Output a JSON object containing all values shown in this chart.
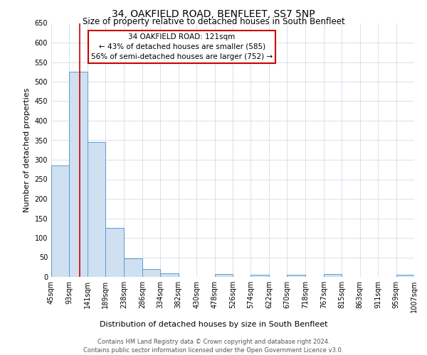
{
  "title": "34, OAKFIELD ROAD, BENFLEET, SS7 5NP",
  "subtitle": "Size of property relative to detached houses in South Benfleet",
  "xlabel": "Distribution of detached houses by size in South Benfleet",
  "ylabel": "Number of detached properties",
  "footer_line1": "Contains HM Land Registry data © Crown copyright and database right 2024.",
  "footer_line2": "Contains public sector information licensed under the Open Government Licence v3.0.",
  "bins": [
    45,
    93,
    141,
    189,
    238,
    286,
    334,
    382,
    430,
    478,
    526,
    574,
    622,
    670,
    718,
    767,
    815,
    863,
    911,
    959,
    1007
  ],
  "bin_labels": [
    "45sqm",
    "93sqm",
    "141sqm",
    "189sqm",
    "238sqm",
    "286sqm",
    "334sqm",
    "382sqm",
    "430sqm",
    "478sqm",
    "526sqm",
    "574sqm",
    "622sqm",
    "670sqm",
    "718sqm",
    "767sqm",
    "815sqm",
    "863sqm",
    "911sqm",
    "959sqm",
    "1007sqm"
  ],
  "counts": [
    285,
    525,
    345,
    125,
    48,
    20,
    10,
    0,
    0,
    8,
    0,
    5,
    0,
    5,
    0,
    7,
    0,
    0,
    0,
    5
  ],
  "bar_color": "#cfe0f0",
  "bar_edge_color": "#5b9bd5",
  "property_line_x": 121,
  "annotation_title": "34 OAKFIELD ROAD: 121sqm",
  "annotation_line2": "← 43% of detached houses are smaller (585)",
  "annotation_line3": "56% of semi-detached houses are larger (752) →",
  "annotation_box_color": "#ffffff",
  "annotation_box_edge": "#cc0000",
  "vline_color": "#cc0000",
  "ylim": [
    0,
    650
  ],
  "yticks": [
    0,
    50,
    100,
    150,
    200,
    250,
    300,
    350,
    400,
    450,
    500,
    550,
    600,
    650
  ],
  "background_color": "#ffffff",
  "grid_color": "#c8d4e3",
  "title_fontsize": 10,
  "subtitle_fontsize": 8.5,
  "axis_label_fontsize": 8,
  "tick_fontsize": 7,
  "footer_fontsize": 6,
  "annotation_fontsize": 7.5
}
